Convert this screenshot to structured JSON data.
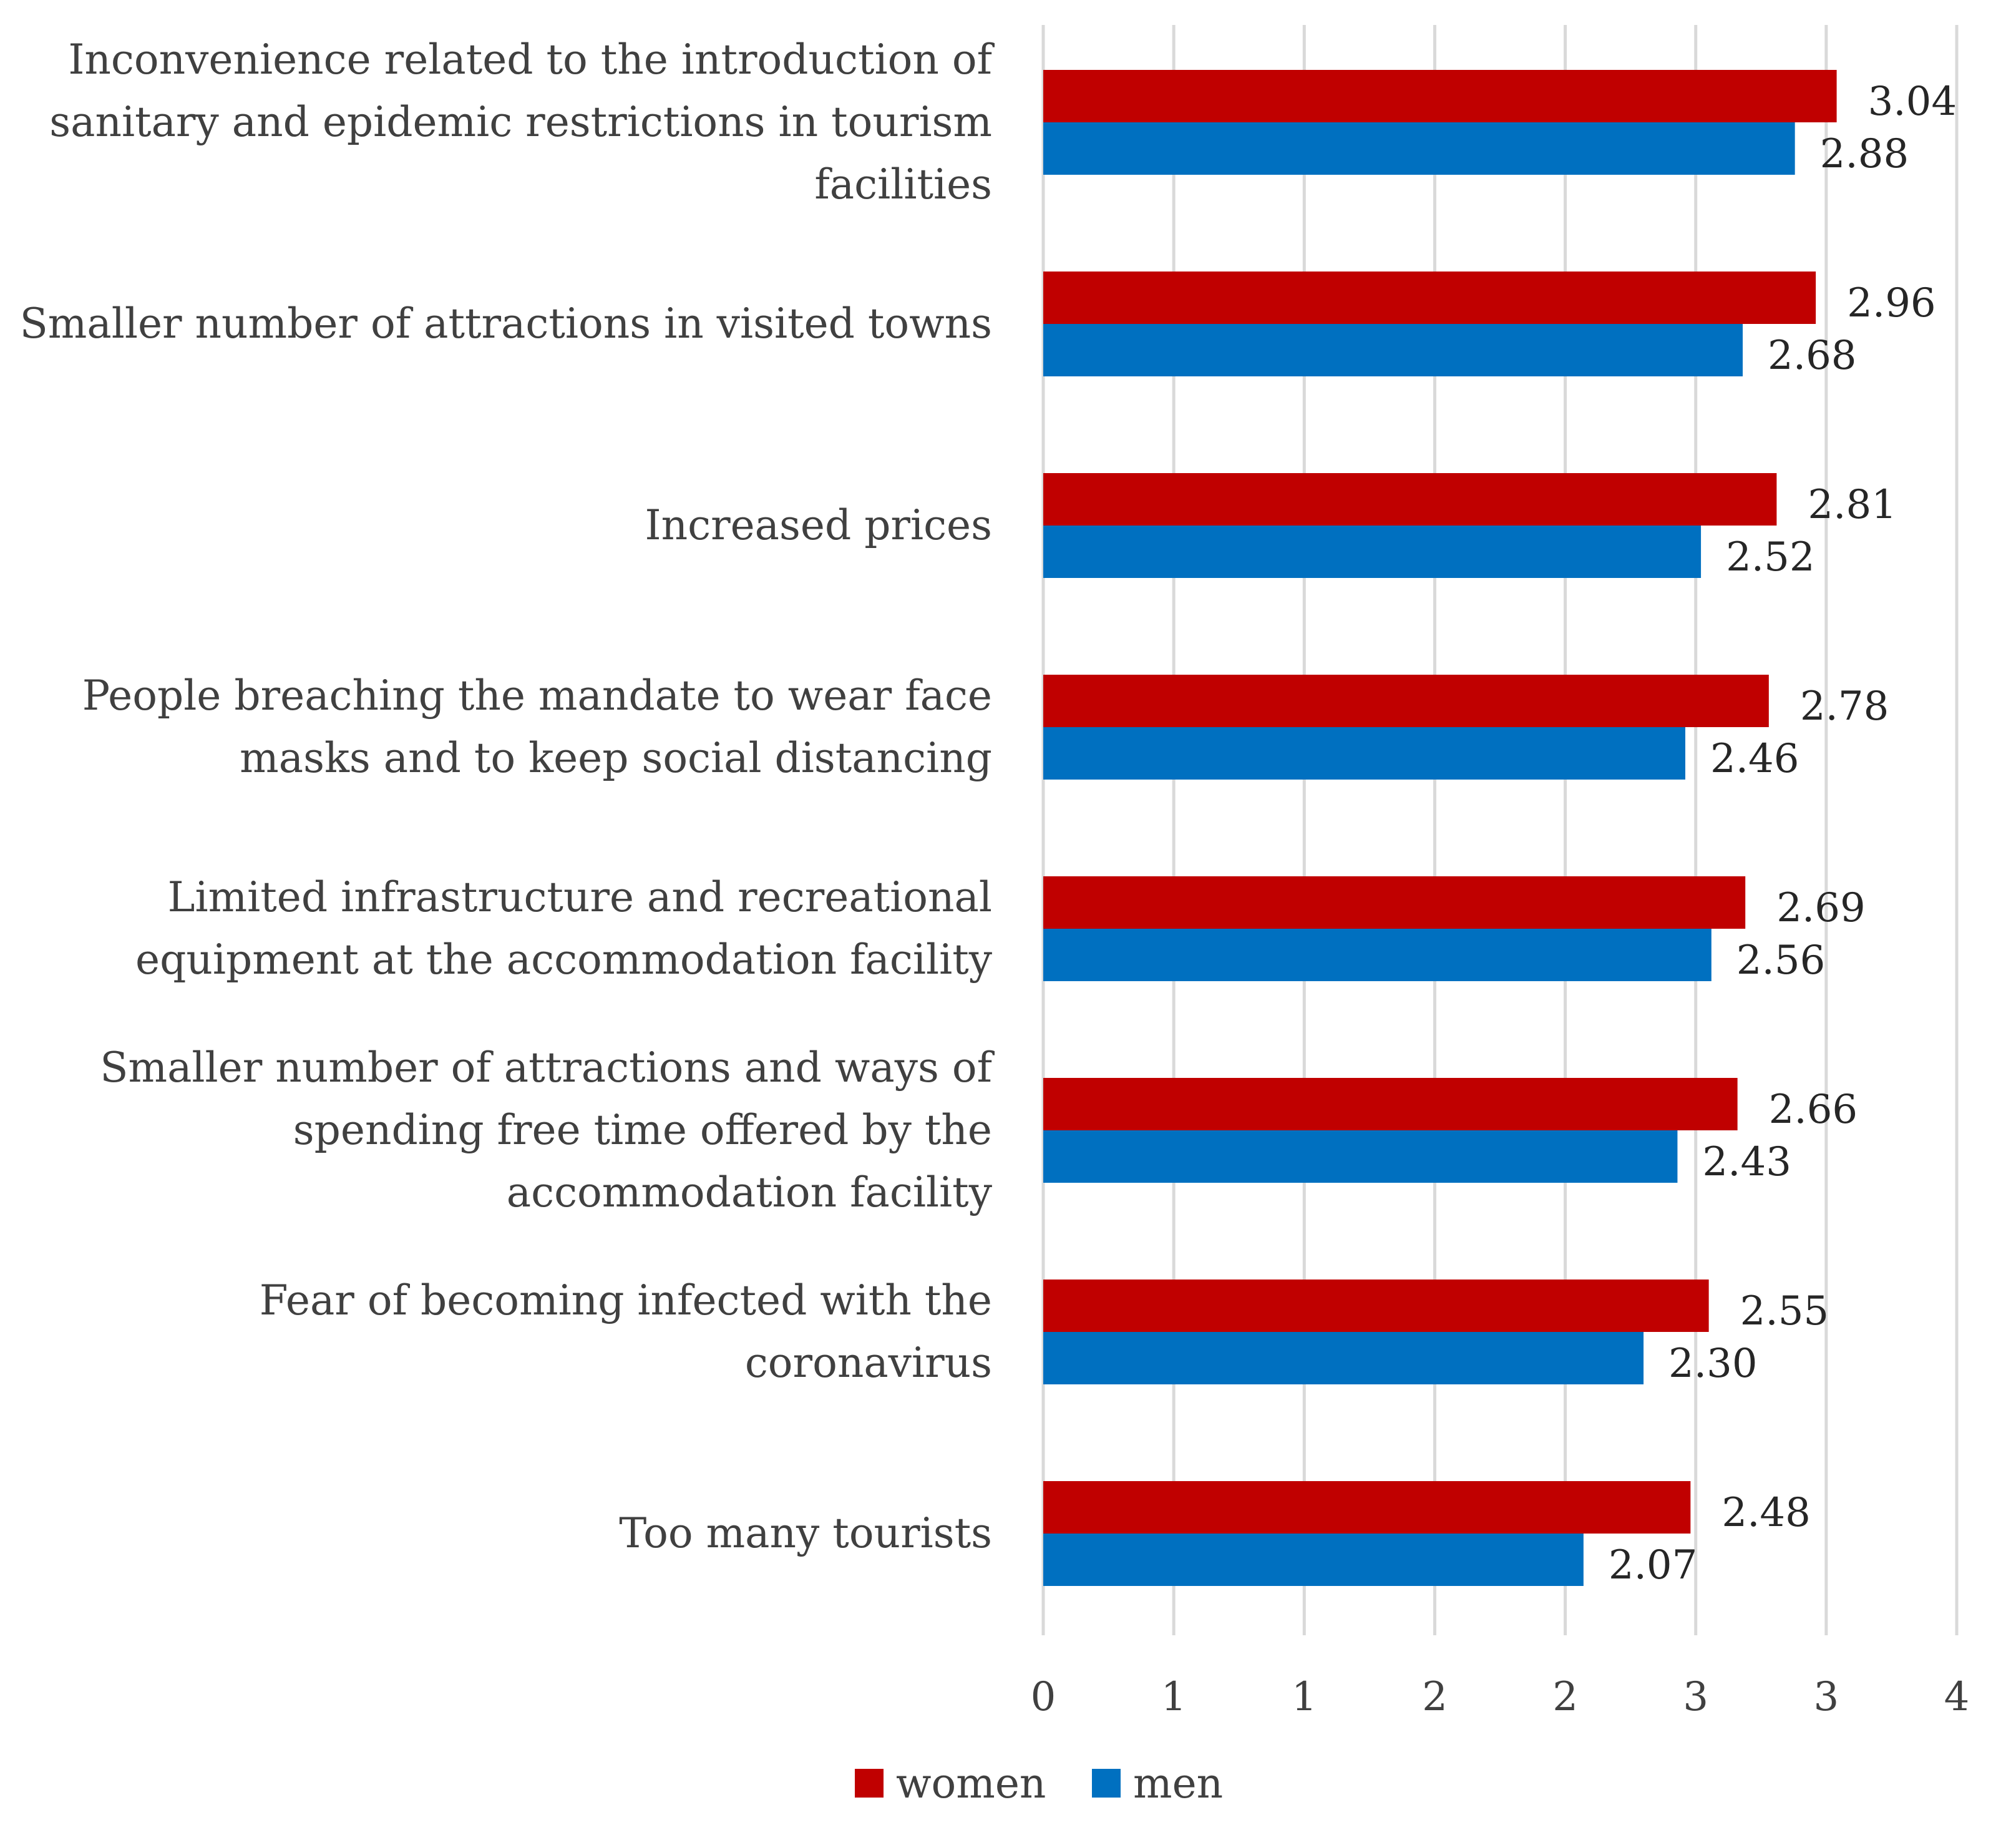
{
  "chart_data": {
    "type": "bar",
    "orientation": "horizontal",
    "categories": [
      [
        "Inconvenience related to the introduction of",
        "sanitary and epidemic restrictions in tourism",
        "facilities"
      ],
      [
        "Smaller number of attractions in visited towns"
      ],
      [
        "Increased prices"
      ],
      [
        "People breaching the mandate to wear face",
        "masks and to keep social distancing"
      ],
      [
        "Limited infrastructure and recreational",
        "equipment at the accommodation facility"
      ],
      [
        "Smaller number of attractions and ways of",
        "spending free time offered by the",
        "accommodation facility"
      ],
      [
        "Fear of becoming infected with the",
        "coronavirus"
      ],
      [
        "Too many tourists"
      ]
    ],
    "series": [
      {
        "name": "women",
        "color": "#C00000",
        "values": [
          3.04,
          2.96,
          2.81,
          2.78,
          2.69,
          2.66,
          2.55,
          2.48
        ],
        "labels": [
          "3.04",
          "2.96",
          "2.81",
          "2.78",
          "2.69",
          "2.66",
          "2.55",
          "2.48"
        ]
      },
      {
        "name": "men",
        "color": "#0070C0",
        "values": [
          2.88,
          2.68,
          2.52,
          2.46,
          2.56,
          2.43,
          2.3,
          2.07
        ],
        "labels": [
          "2.88",
          "2.68",
          "2.52",
          "2.46",
          "2.56",
          "2.43",
          "2.30",
          "2.07"
        ]
      }
    ],
    "xlim": [
      0,
      3.5
    ],
    "ticks": [
      0,
      0.5,
      1,
      1.5,
      2,
      2.5,
      3,
      3.5
    ],
    "tick_labels": [
      "0",
      "1",
      "1",
      "2",
      "2",
      "3",
      "3",
      "4"
    ],
    "grid": true,
    "gridline_color": "#D9D9D9",
    "legend": {
      "position": "bottom",
      "entries": [
        "women",
        "men"
      ]
    }
  }
}
